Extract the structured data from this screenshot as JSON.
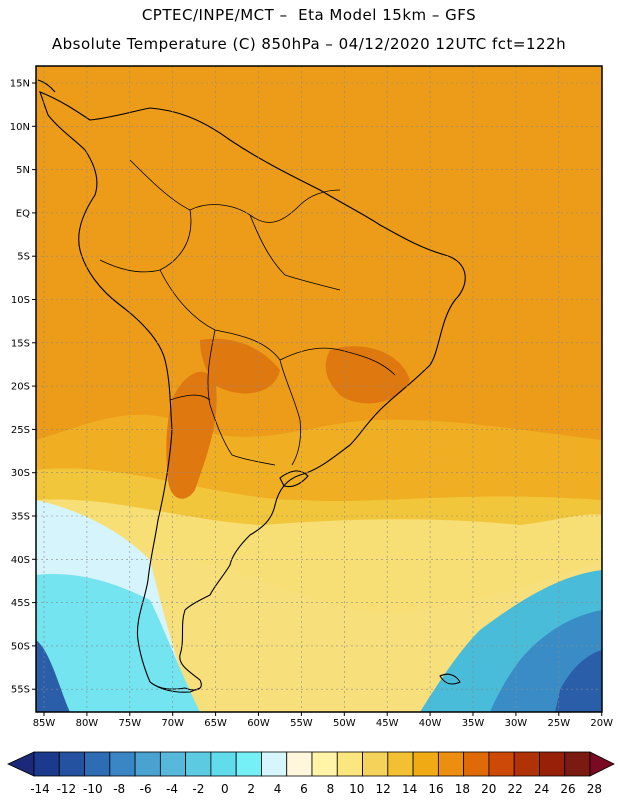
{
  "header": {
    "line1": "CPTEC/INPE/MCT –  Eta Model 15km – GFS",
    "line2": "Absolute Temperature (C) 850hPa – 04/12/2020 12UTC fct=122h"
  },
  "map": {
    "lat_ticks": [
      "15N",
      "10N",
      "5N",
      "EQ",
      "5S",
      "10S",
      "15S",
      "20S",
      "25S",
      "30S",
      "35S",
      "40S",
      "45S",
      "50S",
      "55S"
    ],
    "lon_ticks": [
      "85W",
      "80W",
      "75W",
      "70W",
      "65W",
      "60W",
      "55W",
      "50W",
      "45W",
      "40W",
      "35W",
      "30W",
      "25W",
      "20W"
    ],
    "colors": {
      "hot": "#e07810",
      "warm": "#ec9c18",
      "orange": "#f0ae22",
      "gold": "#f2c63a",
      "yellow": "#f7e07c",
      "pale": "#fff4d4",
      "ice": "#d6f4fb",
      "cyan": "#74e4f0",
      "teal": "#48bcd8",
      "blue": "#3a8cc6",
      "deep": "#2a5ea8"
    }
  },
  "colorbar": {
    "labels": [
      "-14",
      "-12",
      "-10",
      "-8",
      "-6",
      "-4",
      "-2",
      "0",
      "2",
      "4",
      "6",
      "8",
      "10",
      "12",
      "14",
      "16",
      "18",
      "20",
      "22",
      "24",
      "26",
      "28"
    ],
    "colors": [
      "#1c3a8c",
      "#2452a0",
      "#2e6cb4",
      "#3a86c4",
      "#4aa2d0",
      "#56b8da",
      "#5ccbe2",
      "#60dcec",
      "#74f0f6",
      "#d6f6fb",
      "#fff6dc",
      "#fff4a8",
      "#fbe680",
      "#f5d25a",
      "#f2c032",
      "#f0aa14",
      "#ec8e10",
      "#e06a08",
      "#cc4a06",
      "#b23208",
      "#962008",
      "#7a1a10"
    ],
    "low_arrow": "#1c2878",
    "high_arrow": "#7a0a24"
  }
}
